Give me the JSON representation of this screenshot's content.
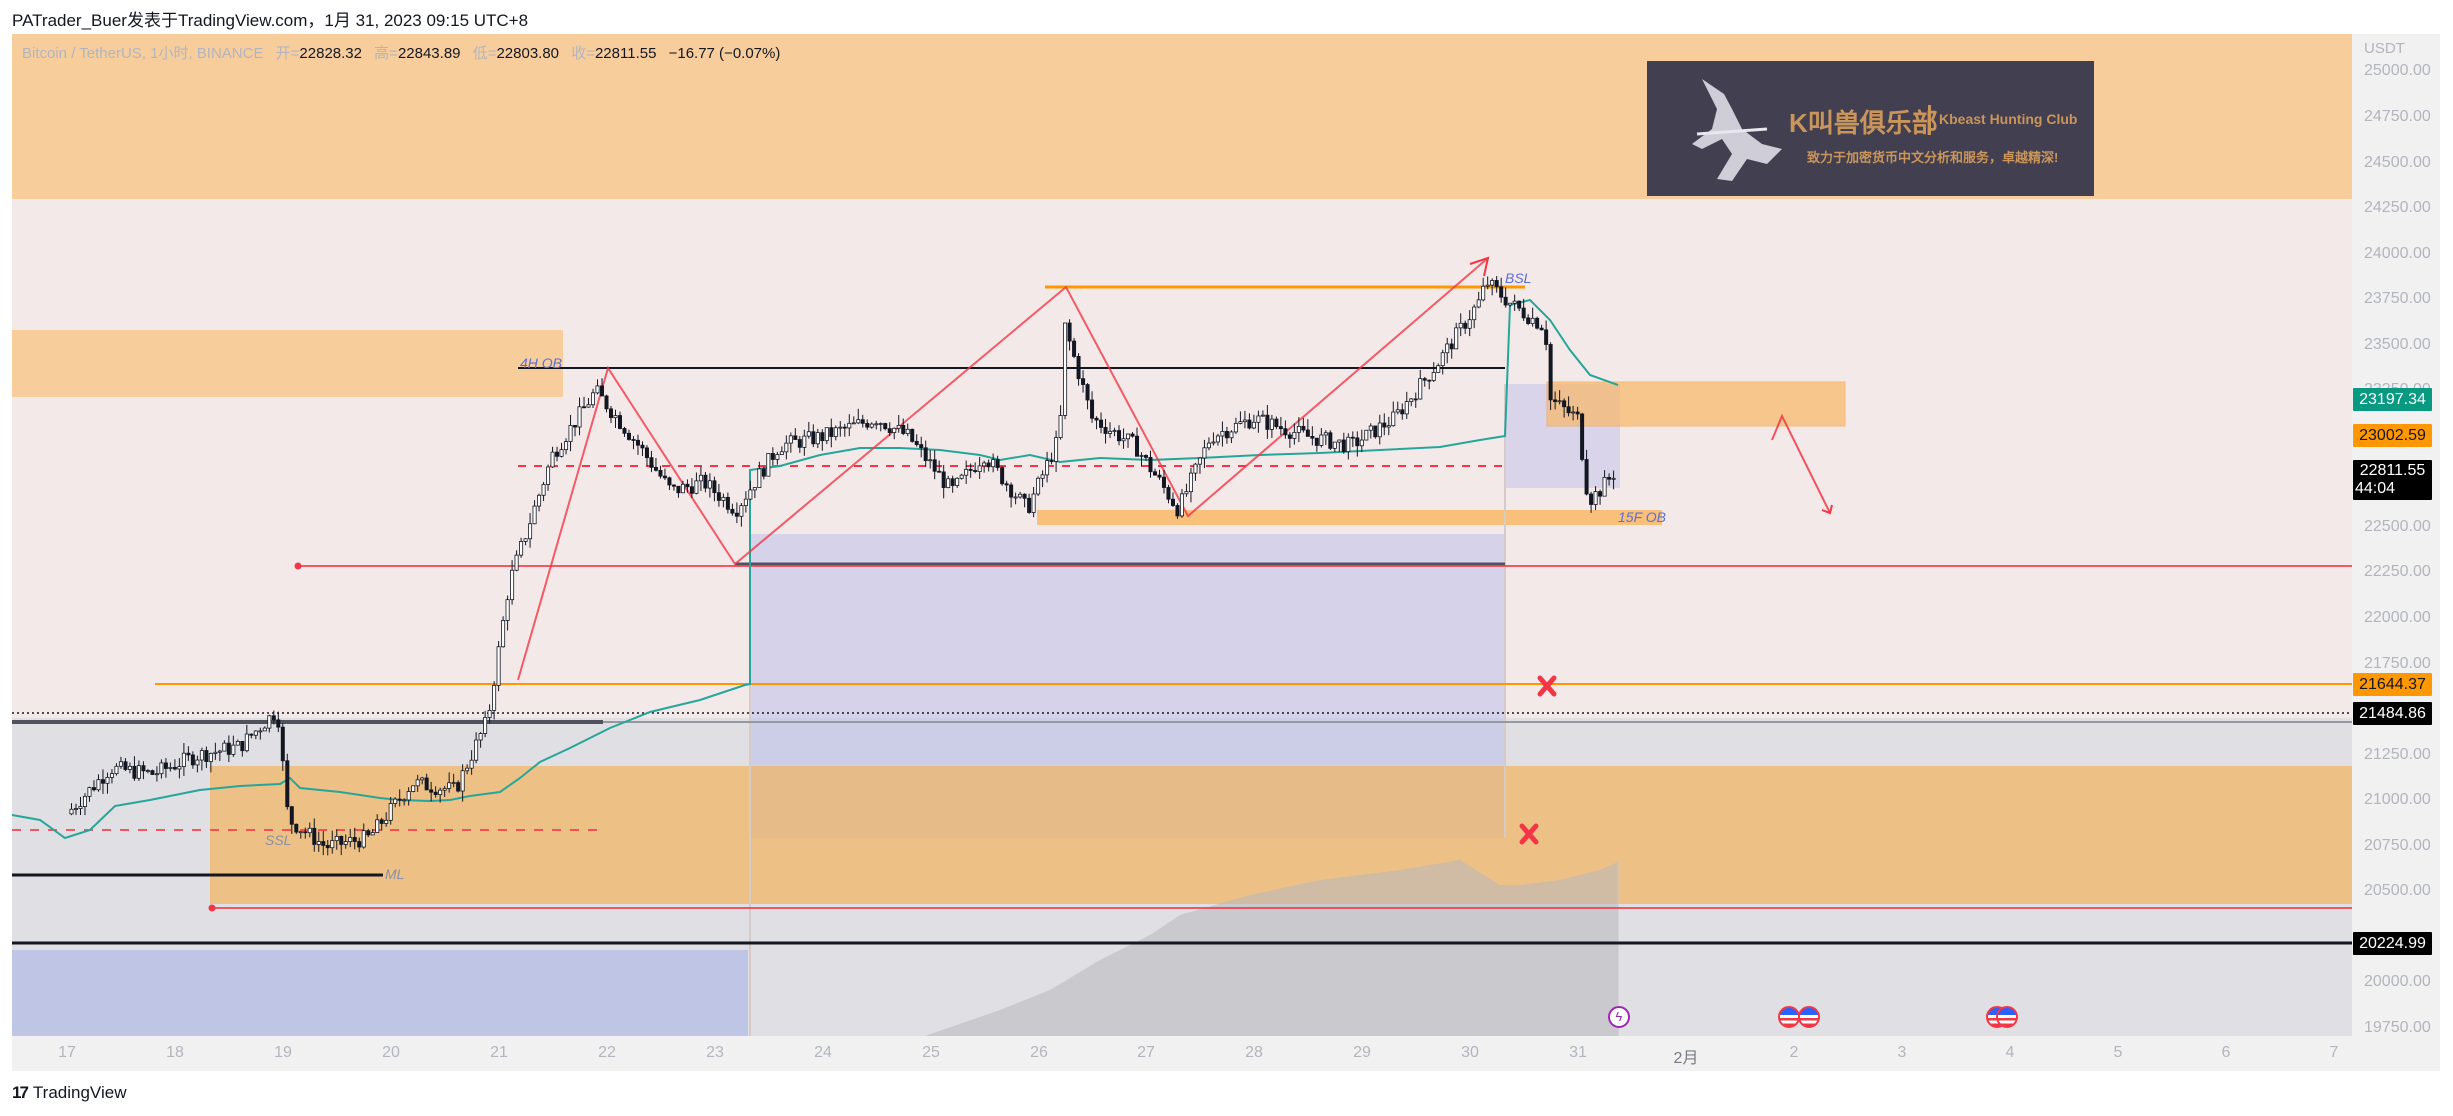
{
  "header": {
    "published": "PATrader_Buer发表于TradingView.com，1月 31, 2023 09:15 UTC+8"
  },
  "legend": {
    "symbol": "Bitcoin / TetherUS, 1小时, BINANCE",
    "open_label": "开=",
    "open": "22828.32",
    "high_label": "高=",
    "high": "22843.89",
    "low_label": "低=",
    "low": "22803.80",
    "close_label": "收=",
    "close": "22811.55",
    "change": "−16.77 (−0.07%)"
  },
  "logo": {
    "title_cn": "K叫兽俱乐部",
    "title_en": "Kbeast Hunting Club",
    "subtitle": "致力于加密货币中文分析和服务，卓越精深!"
  },
  "price_axis": {
    "unit": "USDT",
    "ticks": [
      "25000.00",
      "24750.00",
      "24500.00",
      "24250.00",
      "24000.00",
      "23750.00",
      "23500.00",
      "23250.00",
      "23000.00",
      "22750.00",
      "22500.00",
      "22250.00",
      "22000.00",
      "21750.00",
      "21500.00",
      "21250.00",
      "21000.00",
      "20750.00",
      "20500.00",
      "20250.00",
      "20000.00",
      "19750.00"
    ],
    "tags": [
      {
        "value": "23197.34",
        "bg": "#089981",
        "fg": "#ffffff"
      },
      {
        "value": "23002.59",
        "bg": "#ff9800",
        "fg": "#131722"
      },
      {
        "value": "22811.55",
        "sub": "44:04",
        "bg": "#000000",
        "fg": "#ffffff"
      },
      {
        "value": "21644.37",
        "bg": "#ff9800",
        "fg": "#131722"
      },
      {
        "value": "21484.86",
        "bg": "#000000",
        "fg": "#ffffff"
      },
      {
        "value": "20224.99",
        "bg": "#000000",
        "fg": "#ffffff"
      }
    ]
  },
  "time_axis": {
    "labels": [
      "17",
      "18",
      "19",
      "20",
      "21",
      "22",
      "23",
      "24",
      "25",
      "26",
      "27",
      "28",
      "29",
      "30",
      "31",
      "2月",
      "2",
      "3",
      "4",
      "5",
      "6",
      "7"
    ]
  },
  "annotations": {
    "ob_4h": "4H OB",
    "bsl": "BSL",
    "ob_15f": "15F OB",
    "ssl": "SSL",
    "ml": "ML"
  },
  "events": [
    {
      "type": "bolt",
      "icon": "ϟ"
    },
    {
      "type": "flag"
    },
    {
      "type": "flag"
    },
    {
      "type": "flag"
    },
    {
      "type": "flag"
    }
  ],
  "footer": {
    "brand_mark": "17",
    "brand": "TradingView"
  },
  "colors": {
    "zone_orange": "#f5b56c",
    "zone_blue": "#b2b5e6",
    "ema_line": "#26a69a",
    "zigzag": "#f23645",
    "level_orange": "#ff9800",
    "bull": "#ffffff",
    "bear": "#131722"
  },
  "chart_data": {
    "type": "candlestick",
    "title": "Bitcoin / TetherUS, 1小时, BINANCE",
    "xlabel": "",
    "ylabel": "USDT",
    "ylim": [
      19700,
      25050
    ],
    "x_range": [
      "Jan 17",
      "Feb 7"
    ],
    "ohlc_last": {
      "open": 22828.32,
      "high": 22843.89,
      "low": 22803.8,
      "close": 22811.55
    },
    "price_path": [
      {
        "t": 17.0,
        "p": 20930
      },
      {
        "t": 17.4,
        "p": 21180
      },
      {
        "t": 17.8,
        "p": 21150
      },
      {
        "t": 18.2,
        "p": 21250
      },
      {
        "t": 18.6,
        "p": 21300
      },
      {
        "t": 18.95,
        "p": 21500
      },
      {
        "t": 19.05,
        "p": 20900
      },
      {
        "t": 19.4,
        "p": 20750
      },
      {
        "t": 19.8,
        "p": 20800
      },
      {
        "t": 20.2,
        "p": 21100
      },
      {
        "t": 20.6,
        "p": 21060
      },
      {
        "t": 20.9,
        "p": 21450
      },
      {
        "t": 21.1,
        "p": 22200
      },
      {
        "t": 21.5,
        "p": 22900
      },
      {
        "t": 21.9,
        "p": 23250
      },
      {
        "t": 22.3,
        "p": 22950
      },
      {
        "t": 22.6,
        "p": 22700
      },
      {
        "t": 22.9,
        "p": 22750
      },
      {
        "t": 23.2,
        "p": 22600
      },
      {
        "t": 23.6,
        "p": 22950
      },
      {
        "t": 24.0,
        "p": 23000
      },
      {
        "t": 24.5,
        "p": 23100
      },
      {
        "t": 24.8,
        "p": 23000
      },
      {
        "t": 25.2,
        "p": 22700
      },
      {
        "t": 25.5,
        "p": 22900
      },
      {
        "t": 25.9,
        "p": 22600
      },
      {
        "t": 26.2,
        "p": 23000
      },
      {
        "t": 26.25,
        "p": 23600
      },
      {
        "t": 26.5,
        "p": 23100
      },
      {
        "t": 26.9,
        "p": 22950
      },
      {
        "t": 27.3,
        "p": 22600
      },
      {
        "t": 27.6,
        "p": 23000
      },
      {
        "t": 28.0,
        "p": 23100
      },
      {
        "t": 28.5,
        "p": 23000
      },
      {
        "t": 28.9,
        "p": 22950
      },
      {
        "t": 29.3,
        "p": 23100
      },
      {
        "t": 29.7,
        "p": 23400
      },
      {
        "t": 30.1,
        "p": 23750
      },
      {
        "t": 30.15,
        "p": 23850
      },
      {
        "t": 30.4,
        "p": 23720
      },
      {
        "t": 30.7,
        "p": 23600
      },
      {
        "t": 30.75,
        "p": 23200
      },
      {
        "t": 31.0,
        "p": 23100
      },
      {
        "t": 31.1,
        "p": 22650
      },
      {
        "t": 31.2,
        "p": 22700
      },
      {
        "t": 31.35,
        "p": 22811
      }
    ],
    "levels": [
      {
        "name": "BSL high",
        "price": 23815,
        "color": "#ff9800"
      },
      {
        "name": "4H OB line",
        "price": 23390,
        "color": "#131722"
      },
      {
        "name": "dashed mid",
        "price": 22980,
        "color": "#f23645",
        "style": "dashed"
      },
      {
        "name": "support",
        "price": 22300,
        "color": "#f23645"
      },
      {
        "name": "21644.37",
        "price": 21644.37,
        "color": "#ff9800"
      },
      {
        "name": "21484.86",
        "price": 21484.86,
        "color": "#131722",
        "style": "dotted"
      },
      {
        "name": "SSL dashed",
        "price": 20840,
        "color": "#f23645",
        "style": "dashed"
      },
      {
        "name": "ML",
        "price": 20620,
        "color": "#131722"
      },
      {
        "name": "low",
        "price": 20425,
        "color": "#f23645"
      },
      {
        "name": "20224.99",
        "price": 20224.99,
        "color": "#131722"
      }
    ],
    "zones": [
      {
        "name": "top supply",
        "from": 24250,
        "to": 25100,
        "color": "orange"
      },
      {
        "name": "4H OB",
        "from": 23180,
        "to": 23560,
        "color": "orange"
      },
      {
        "name": "1H supply",
        "from": 23000,
        "to": 23240,
        "color": "orange"
      },
      {
        "name": "15F OB",
        "from": 22570,
        "to": 22650,
        "color": "orange"
      },
      {
        "name": "demand",
        "from": 20440,
        "to": 21200,
        "color": "orange"
      },
      {
        "name": "fvg blue",
        "from": 20800,
        "to": 22480,
        "color": "blue"
      }
    ]
  }
}
